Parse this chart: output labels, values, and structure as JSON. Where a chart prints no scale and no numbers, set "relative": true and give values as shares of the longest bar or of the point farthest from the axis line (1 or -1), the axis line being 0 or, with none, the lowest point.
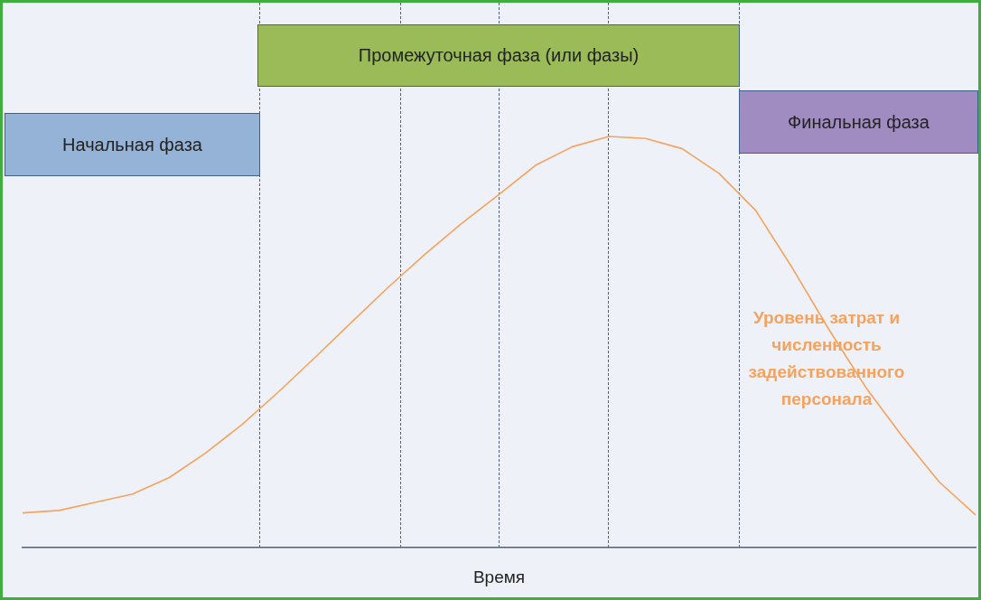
{
  "chart_data": {
    "type": "line",
    "relative": true,
    "xlabel": "Время",
    "grid": false,
    "legend": false,
    "marker": "none",
    "line_style": "solid",
    "categories": [
      null,
      null,
      null,
      null,
      null,
      null,
      null,
      null,
      null,
      null,
      null,
      null,
      null,
      null,
      null,
      null,
      null,
      null,
      null,
      null,
      null,
      null,
      null,
      null,
      null,
      null,
      null
    ],
    "series": [
      {
        "name": "Уровень затрат и численность задействованного персонала",
        "color": "#f5a25d",
        "values": [
          0.084,
          0.09,
          0.11,
          0.13,
          0.17,
          0.23,
          0.3,
          0.38,
          0.464,
          0.55,
          0.635,
          0.715,
          0.79,
          0.859,
          0.93,
          0.975,
          1,
          0.995,
          0.97,
          0.91,
          0.82,
          0.68,
          0.53,
          0.39,
          0.27,
          0.16,
          0.079
        ]
      }
    ],
    "annotations": [
      "Начальная фаза",
      "Промежуточная фаза (или фазы)",
      "Финальная фаза"
    ]
  }
}
